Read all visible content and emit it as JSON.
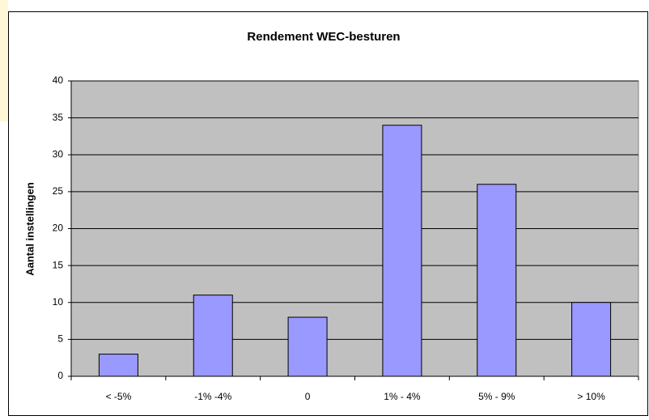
{
  "chart_data": {
    "type": "bar",
    "title": "Rendement WEC-besturen",
    "y_label": "Aantal instellingen",
    "categories": [
      "< -5%",
      "-1% -4%",
      "0",
      "1% - 4%",
      "5% - 9%",
      "> 10%"
    ],
    "values": [
      3,
      11,
      8,
      34,
      26,
      10
    ],
    "color": "#9999ff",
    "ylim": [
      0,
      40
    ],
    "yticks": [
      0,
      5,
      10,
      15,
      20,
      25,
      30,
      35,
      40
    ],
    "grid": true
  }
}
